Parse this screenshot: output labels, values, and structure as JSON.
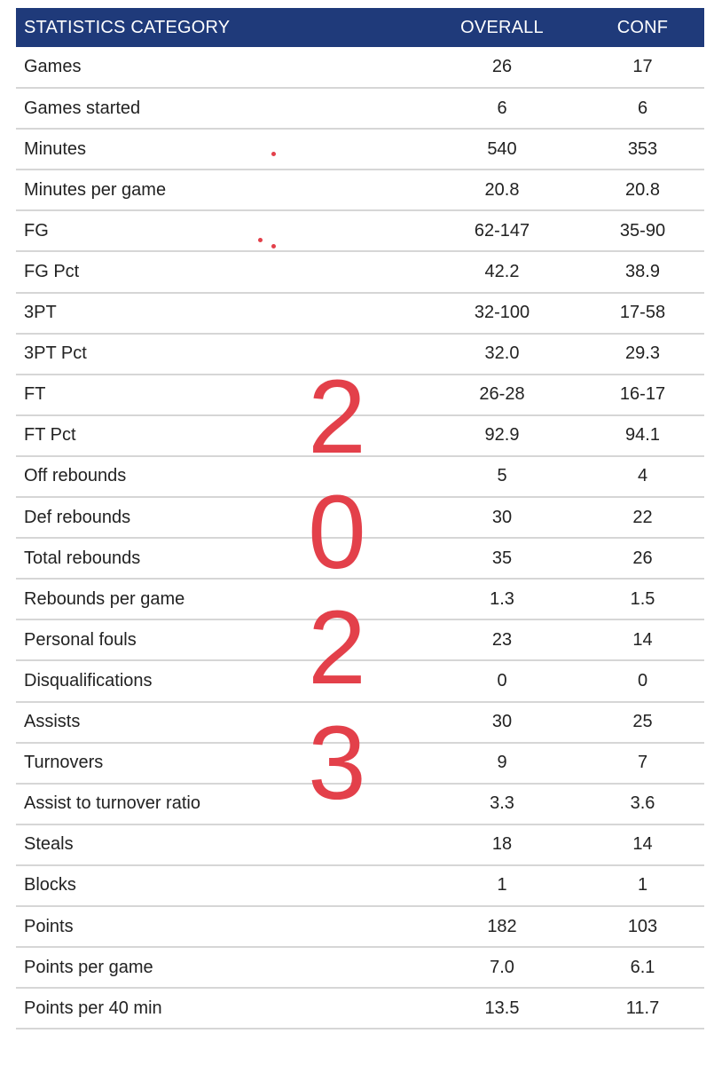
{
  "table": {
    "headers": [
      "STATISTICS CATEGORY",
      "OVERALL",
      "CONF"
    ],
    "rows": [
      [
        "Games",
        "26",
        "17"
      ],
      [
        "Games started",
        "6",
        "6"
      ],
      [
        "Minutes",
        "540",
        "353"
      ],
      [
        "Minutes per game",
        "20.8",
        "20.8"
      ],
      [
        "FG",
        "62-147",
        "35-90"
      ],
      [
        "FG Pct",
        "42.2",
        "38.9"
      ],
      [
        "3PT",
        "32-100",
        "17-58"
      ],
      [
        "3PT Pct",
        "32.0",
        "29.3"
      ],
      [
        "FT",
        "26-28",
        "16-17"
      ],
      [
        "FT Pct",
        "92.9",
        "94.1"
      ],
      [
        "Off rebounds",
        "5",
        "4"
      ],
      [
        "Def rebounds",
        "30",
        "22"
      ],
      [
        "Total rebounds",
        "35",
        "26"
      ],
      [
        "Rebounds per game",
        "1.3",
        "1.5"
      ],
      [
        "Personal fouls",
        "23",
        "14"
      ],
      [
        "Disqualifications",
        "0",
        "0"
      ],
      [
        "Assists",
        "30",
        "25"
      ],
      [
        "Turnovers",
        "9",
        "7"
      ],
      [
        "Assist to turnover ratio",
        "3.3",
        "3.6"
      ],
      [
        "Steals",
        "18",
        "14"
      ],
      [
        "Blocks",
        "1",
        "1"
      ],
      [
        "Points",
        "182",
        "103"
      ],
      [
        "Points per game",
        "7.0",
        "6.1"
      ],
      [
        "Points per 40 min",
        "13.5",
        "11.7"
      ]
    ]
  },
  "overlay": {
    "digits": [
      "2",
      "0",
      "2",
      "3"
    ],
    "color": "#e3404a"
  },
  "colors": {
    "header_bg": "#1f3a7a",
    "row_divider": "#d6d6d6"
  }
}
